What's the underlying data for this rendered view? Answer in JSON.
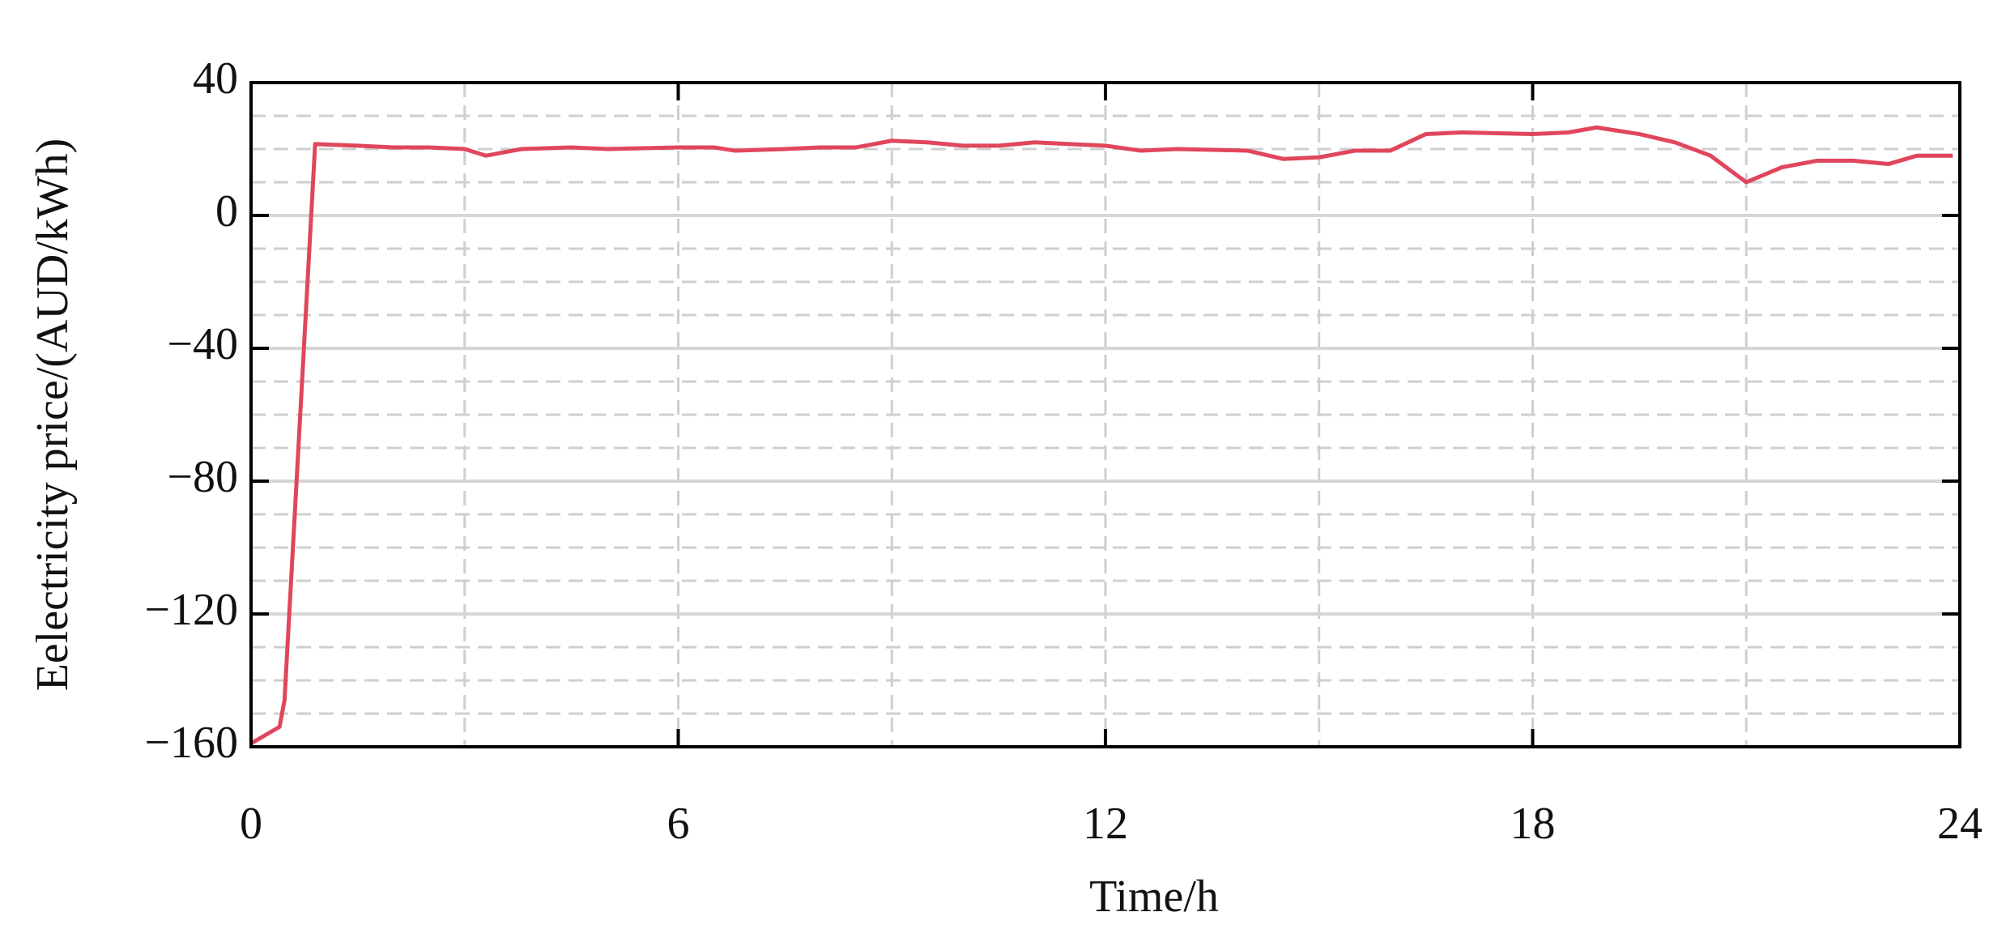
{
  "chart_data": {
    "type": "line",
    "x_label": "Time/h",
    "y_label": "Eelectricity price/(AUD/kWh)",
    "series": [
      {
        "name": "Electricity price",
        "color": "#e0465c",
        "x": [
          0,
          0.4,
          0.47,
          0.9,
          1.5,
          2,
          2.5,
          3,
          3.3,
          3.8,
          4.5,
          5,
          6,
          6.5,
          6.8,
          7.5,
          8,
          8.5,
          9,
          9.5,
          10,
          10.5,
          11,
          11.5,
          12,
          12.5,
          13,
          14,
          14.5,
          15,
          15.5,
          16,
          16.5,
          17,
          18,
          18.5,
          18.9,
          19.5,
          20,
          20.5,
          21,
          21.5,
          22,
          22.5,
          23,
          23.4,
          23.9
        ],
        "values": [
          -159,
          -154,
          -146,
          21.5,
          21,
          20.5,
          20.5,
          20,
          18,
          20,
          20.5,
          20,
          20.5,
          20.5,
          19.5,
          20,
          20.5,
          20.5,
          22.5,
          22,
          21,
          21,
          22,
          21.5,
          21,
          19.5,
          20,
          19.5,
          17,
          17.5,
          19.5,
          19.5,
          24.5,
          25,
          24.5,
          25,
          26.5,
          24.5,
          22,
          18,
          10,
          14.5,
          16.5,
          16.5,
          15.5,
          18,
          18
        ]
      }
    ],
    "xlim": [
      0,
      24
    ],
    "xticks": [
      0,
      6,
      12,
      18,
      24
    ],
    "ylim": [
      -160,
      40
    ],
    "yticks": [
      {
        "value": -160,
        "label": "−160"
      },
      {
        "value": -120,
        "label": "−120"
      },
      {
        "value": -80,
        "label": "−80"
      },
      {
        "value": -40,
        "label": "−40"
      },
      0,
      40
    ],
    "minor_xticks": [
      3,
      9,
      15,
      21
    ],
    "minor_yticks": [
      -150,
      -140,
      -130,
      -110,
      -100,
      -90,
      -70,
      -60,
      -50,
      -30,
      -20,
      -10,
      10,
      20,
      30
    ],
    "grid": true
  }
}
